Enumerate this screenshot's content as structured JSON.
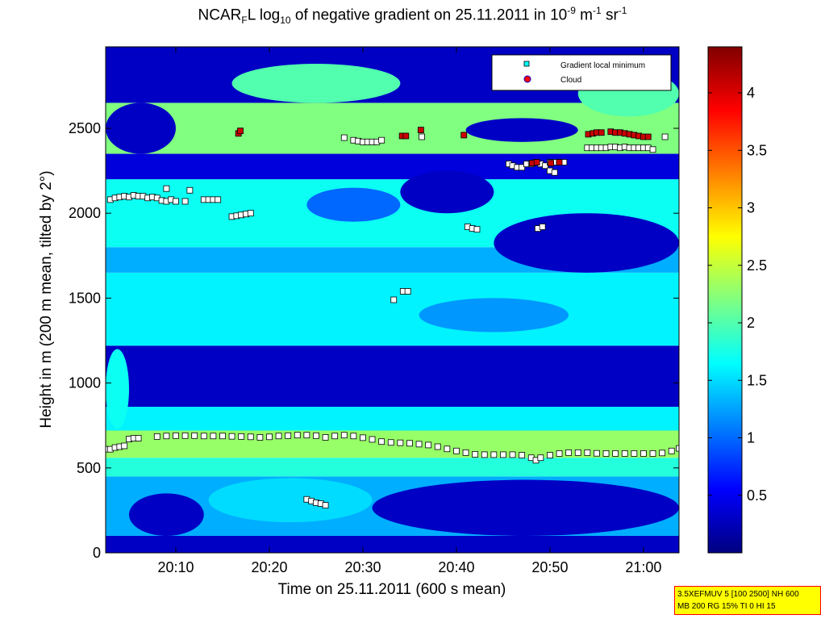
{
  "title": {
    "pre": "NCAR",
    "sub1": "F",
    "mid": "L log",
    "sub2": "10",
    "post": " of negative gradient on 25.11.2011 in 10",
    "sup1": "-9",
    "unit1": " m",
    "sup2": "-1",
    "unit2": " sr",
    "sup3": "-1"
  },
  "info_box": {
    "line1": "3.5XEFMUV 5 [100 2500] NH 600",
    "line2": "MB 200 RG 15% TI 0 HI 15"
  },
  "chart_data": {
    "type": "heatmap",
    "title": "NCAR_F L log10 of negative gradient on 25.11.2011 in 10^-9 m^-1 sr^-1",
    "xlabel": "Time on 25.11.2011 (600 s mean)",
    "ylabel": "Height in m (200 m mean, tilted by 2°)",
    "x_unit": "minutes after 20:00",
    "xlim": [
      2.5,
      63.8
    ],
    "ylim": [
      0,
      2980
    ],
    "xticks": [
      {
        "value": 10,
        "label": "20:10"
      },
      {
        "value": 20,
        "label": "20:20"
      },
      {
        "value": 30,
        "label": "20:30"
      },
      {
        "value": 40,
        "label": "20:40"
      },
      {
        "value": 50,
        "label": "20:50"
      },
      {
        "value": 60,
        "label": "21:00"
      }
    ],
    "yticks": [
      {
        "value": 0,
        "label": "0"
      },
      {
        "value": 500,
        "label": "500"
      },
      {
        "value": 1000,
        "label": "1000"
      },
      {
        "value": 1500,
        "label": "1500"
      },
      {
        "value": 2000,
        "label": "2000"
      },
      {
        "value": 2500,
        "label": "2500"
      }
    ],
    "colorbar": {
      "range": [
        0,
        4.4
      ],
      "ticks": [
        {
          "value": 0.5,
          "label": "0.5"
        },
        {
          "value": 1,
          "label": "1"
        },
        {
          "value": 1.5,
          "label": "1.5"
        },
        {
          "value": 2,
          "label": "2"
        },
        {
          "value": 2.5,
          "label": "2.5"
        },
        {
          "value": 3,
          "label": "3"
        },
        {
          "value": 3.5,
          "label": "3.5"
        },
        {
          "value": 4,
          "label": "4"
        }
      ],
      "colormap": "jet"
    },
    "background_bands": [
      {
        "y0": 0,
        "y1": 100,
        "value": 0.3
      },
      {
        "y0": 100,
        "y1": 450,
        "value": 1.3
      },
      {
        "y0": 450,
        "y1": 560,
        "value": 1.8
      },
      {
        "y0": 560,
        "y1": 720,
        "value": 2.3
      },
      {
        "y0": 720,
        "y1": 860,
        "value": 1.6
      },
      {
        "y0": 860,
        "y1": 1220,
        "value": 0.3
      },
      {
        "y0": 1220,
        "y1": 1650,
        "value": 1.6
      },
      {
        "y0": 1650,
        "y1": 1800,
        "value": 1.3
      },
      {
        "y0": 1800,
        "y1": 2200,
        "value": 1.7
      },
      {
        "y0": 2200,
        "y1": 2350,
        "value": 0.4
      },
      {
        "y0": 2350,
        "y1": 2650,
        "value": 2.2
      },
      {
        "y0": 2650,
        "y1": 2980,
        "value": 0.3
      }
    ],
    "patches": [
      {
        "x0": 13.5,
        "x1": 31,
        "y0": 180,
        "y1": 440,
        "value": 1.5
      },
      {
        "x0": 5,
        "x1": 13,
        "y0": 100,
        "y1": 350,
        "value": 0.3
      },
      {
        "x0": 31,
        "x1": 63.8,
        "y0": 100,
        "y1": 430,
        "value": 0.3
      },
      {
        "x0": 44,
        "x1": 63.8,
        "y0": 1650,
        "y1": 2000,
        "value": 0.3
      },
      {
        "x0": 36,
        "x1": 52,
        "y0": 1300,
        "y1": 1500,
        "value": 1.2
      },
      {
        "x0": 41,
        "x1": 53,
        "y0": 2420,
        "y1": 2560,
        "value": 0.3
      },
      {
        "x0": 16,
        "x1": 34,
        "y0": 2650,
        "y1": 2880,
        "value": 2.0
      },
      {
        "x0": 53,
        "x1": 63.8,
        "y0": 2570,
        "y1": 2840,
        "value": 2.0
      },
      {
        "x0": 2.5,
        "x1": 10,
        "y0": 2350,
        "y1": 2650,
        "value": 0.3
      },
      {
        "x0": 34,
        "x1": 44,
        "y0": 2000,
        "y1": 2250,
        "value": 0.3
      },
      {
        "x0": 24,
        "x1": 34,
        "y0": 1950,
        "y1": 2150,
        "value": 1.0
      },
      {
        "x0": 2.5,
        "x1": 5,
        "y0": 730,
        "y1": 1200,
        "value": 1.7
      }
    ],
    "legend": {
      "position": "top-right",
      "entries": [
        {
          "label": "Gradient local minimum",
          "marker": "square",
          "color": "#00ffff"
        },
        {
          "label": "Cloud",
          "marker": "circle",
          "color": "#ff0000"
        }
      ]
    },
    "series": [
      {
        "name": "Gradient local minimum",
        "marker": "square",
        "color": "#ffffff",
        "segments": [
          {
            "x": [
              2.5,
              3,
              3.5,
              4,
              4.5,
              5,
              5.5,
              6
            ],
            "y": [
              610,
              610,
              620,
              625,
              630,
              670,
              675,
              675
            ]
          },
          {
            "x": [
              8,
              9,
              10,
              11,
              12,
              13,
              14,
              15,
              16,
              17,
              18,
              19,
              20,
              21,
              22,
              23,
              24,
              25,
              26,
              27,
              28,
              29,
              30,
              31,
              32,
              33,
              34,
              35,
              36,
              37,
              38,
              39,
              40,
              41,
              42,
              43,
              44,
              45,
              46,
              47,
              48,
              48.5,
              49,
              50,
              51,
              52,
              53,
              54,
              55,
              56,
              57,
              58,
              59,
              60,
              61,
              62,
              63,
              63.8
            ],
            "y": [
              685,
              688,
              690,
              690,
              690,
              688,
              688,
              688,
              686,
              685,
              683,
              680,
              683,
              688,
              690,
              693,
              693,
              690,
              680,
              688,
              693,
              688,
              678,
              668,
              655,
              650,
              648,
              645,
              640,
              635,
              625,
              612,
              600,
              590,
              580,
              578,
              578,
              578,
              578,
              575,
              560,
              545,
              560,
              575,
              585,
              590,
              590,
              590,
              586,
              585,
              585,
              585,
              585,
              585,
              585,
              588,
              600,
              615
            ]
          },
          {
            "x": [
              24,
              24.5,
              25,
              25.5,
              26
            ],
            "y": [
              315,
              305,
              295,
              290,
              280
            ]
          },
          {
            "x": [
              3,
              3.5,
              4,
              4.5,
              5,
              5.5,
              6,
              6.5,
              7,
              7.5,
              8,
              8.5,
              9,
              9.5,
              10,
              11
            ],
            "y": [
              2080,
              2090,
              2095,
              2100,
              2095,
              2105,
              2100,
              2100,
              2090,
              2095,
              2090,
              2075,
              2070,
              2080,
              2070,
              2070
            ]
          },
          {
            "x": [
              9,
              11.5
            ],
            "y": [
              2145,
              2135
            ]
          },
          {
            "x": [
              13,
              13.5,
              14,
              14.5
            ],
            "y": [
              2080,
              2080,
              2080,
              2080
            ]
          },
          {
            "x": [
              16,
              16.5,
              17,
              17.5,
              18
            ],
            "y": [
              1980,
              1985,
              1990,
              1995,
              2000
            ]
          },
          {
            "x": [
              28,
              29,
              29.5,
              30,
              30.5,
              31,
              31.5,
              32
            ],
            "y": [
              2445,
              2430,
              2425,
              2420,
              2420,
              2420,
              2420,
              2430
            ]
          },
          {
            "x": [
              36.3
            ],
            "y": [
              2450
            ]
          },
          {
            "x": [
              33.3
            ],
            "y": [
              1490
            ]
          },
          {
            "x": [
              34.3,
              34.8
            ],
            "y": [
              1540,
              1540
            ]
          },
          {
            "x": [
              41.2,
              41.7,
              42.2
            ],
            "y": [
              1920,
              1910,
              1905
            ]
          },
          {
            "x": [
              48.7,
              49.2
            ],
            "y": [
              1910,
              1920
            ]
          },
          {
            "x": [
              45.6,
              46,
              46.5,
              47,
              47.5,
              48,
              48.5,
              49,
              49.5,
              50,
              50.5,
              51,
              51.5
            ],
            "y": [
              2290,
              2280,
              2270,
              2270,
              2290,
              2290,
              2300,
              2290,
              2280,
              2300,
              2300,
              2300,
              2300
            ]
          },
          {
            "x": [
              50,
              50.5
            ],
            "y": [
              2250,
              2240
            ]
          },
          {
            "x": [
              54,
              54.5,
              55,
              55.5,
              56,
              56.5,
              57,
              57.5,
              58,
              58.5,
              59,
              59.5,
              60,
              60.5,
              61
            ],
            "y": [
              2385,
              2385,
              2385,
              2385,
              2385,
              2390,
              2390,
              2385,
              2390,
              2385,
              2385,
              2385,
              2385,
              2385,
              2375
            ]
          },
          {
            "x": [
              62.3
            ],
            "y": [
              2450
            ]
          }
        ]
      },
      {
        "name": "Cloud",
        "marker": "square",
        "color": "#cc0000",
        "segments": [
          {
            "x": [
              16.7,
              16.9
            ],
            "y": [
              2470,
              2485
            ]
          },
          {
            "x": [
              34.2,
              34.6
            ],
            "y": [
              2455,
              2455
            ]
          },
          {
            "x": [
              36.2
            ],
            "y": [
              2490
            ]
          },
          {
            "x": [
              40.8
            ],
            "y": [
              2460
            ]
          },
          {
            "x": [
              48.1,
              48.6,
              50.1,
              51
            ],
            "y": [
              2295,
              2300,
              2295,
              2300
            ]
          },
          {
            "x": [
              54.1,
              54.6,
              55,
              55.5,
              56.5,
              57,
              57.5,
              58,
              58.5,
              59,
              59.5,
              60,
              60.5
            ],
            "y": [
              2465,
              2470,
              2475,
              2475,
              2480,
              2475,
              2475,
              2470,
              2465,
              2460,
              2455,
              2450,
              2450
            ]
          }
        ]
      }
    ]
  }
}
